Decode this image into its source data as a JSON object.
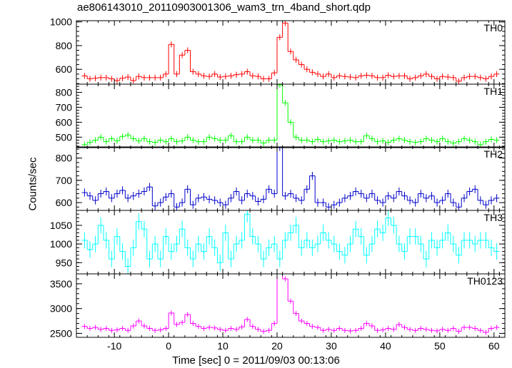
{
  "chart_data": {
    "type": "line",
    "style": "step-with-error-bars",
    "title": "ae806143010_20110903001306_wam3_trn_4band_short.qdp",
    "xlabel": "Time [sec] 0 = 2011/09/03 00:13:06",
    "ylabel": "Counts/sec",
    "xlim": [
      -17,
      62
    ],
    "x_ticks": [
      -10,
      0,
      10,
      20,
      30,
      40,
      50,
      60
    ],
    "grid": false,
    "x": [
      -15.5,
      -14.5,
      -13.5,
      -12.5,
      -11.5,
      -10.5,
      -9.5,
      -8.5,
      -7.5,
      -6.5,
      -5.5,
      -4.5,
      -3.5,
      -2.5,
      -1.5,
      -0.5,
      0.5,
      1.5,
      2.5,
      3.5,
      4.5,
      5.5,
      6.5,
      7.5,
      8.5,
      9.5,
      10.5,
      11.5,
      12.5,
      13.5,
      14.5,
      15.5,
      16.5,
      17.5,
      18.5,
      19.5,
      20.5,
      21.5,
      22.5,
      23.5,
      24.5,
      25.5,
      26.5,
      27.5,
      28.5,
      29.5,
      30.5,
      31.5,
      32.5,
      33.5,
      34.5,
      35.5,
      36.5,
      37.5,
      38.5,
      39.5,
      40.5,
      41.5,
      42.5,
      43.5,
      44.5,
      45.5,
      46.5,
      47.5,
      48.5,
      49.5,
      50.5,
      51.5,
      52.5,
      53.5,
      54.5,
      55.5,
      56.5,
      57.5,
      58.5,
      59.5,
      60.5
    ],
    "panels": [
      {
        "name": "TH0",
        "color": "#ff0000",
        "ylim": [
          475,
          1010
        ],
        "y_ticks": [
          600,
          800,
          1000
        ],
        "error": 25,
        "values": [
          545,
          520,
          525,
          530,
          530,
          520,
          505,
          525,
          535,
          505,
          540,
          530,
          530,
          530,
          530,
          560,
          810,
          560,
          720,
          760,
          580,
          560,
          545,
          540,
          560,
          535,
          540,
          545,
          555,
          560,
          580,
          545,
          540,
          520,
          520,
          570,
          870,
          990,
          750,
          680,
          640,
          600,
          575,
          560,
          540,
          560,
          530,
          545,
          540,
          535,
          530,
          545,
          550,
          545,
          530,
          530,
          550,
          540,
          545,
          545,
          520,
          530,
          545,
          560,
          540,
          520,
          540,
          535,
          530,
          500,
          530,
          540,
          540,
          530,
          520,
          540,
          560
        ]
      },
      {
        "name": "TH1",
        "color": "#00ff00",
        "ylim": [
          430,
          855
        ],
        "y_ticks": [
          500,
          600,
          700,
          800
        ],
        "error": 20,
        "values": [
          450,
          465,
          480,
          500,
          470,
          490,
          475,
          505,
          515,
          490,
          475,
          490,
          470,
          465,
          480,
          470,
          490,
          470,
          475,
          500,
          480,
          470,
          470,
          500,
          490,
          480,
          480,
          510,
          470,
          470,
          500,
          480,
          480,
          460,
          480,
          480,
          850,
          730,
          600,
          500,
          480,
          480,
          470,
          485,
          470,
          475,
          480,
          470,
          475,
          480,
          470,
          470,
          510,
          490,
          470,
          475,
          465,
          480,
          490,
          480,
          470,
          465,
          470,
          490,
          480,
          470,
          490,
          470,
          460,
          470,
          490,
          480,
          470,
          450,
          470,
          485,
          480
        ]
      },
      {
        "name": "TH2",
        "color": "#0000cc",
        "ylim": [
          565,
          850
        ],
        "y_ticks": [
          600,
          700,
          800
        ],
        "error": 18,
        "values": [
          645,
          630,
          610,
          640,
          650,
          620,
          640,
          655,
          620,
          630,
          640,
          650,
          670,
          585,
          600,
          625,
          640,
          580,
          600,
          660,
          590,
          620,
          625,
          615,
          610,
          600,
          590,
          620,
          650,
          610,
          640,
          630,
          605,
          615,
          660,
          640,
          850,
          630,
          640,
          620,
          610,
          660,
          720,
          600,
          600,
          580,
          590,
          600,
          620,
          630,
          650,
          640,
          620,
          640,
          610,
          600,
          630,
          620,
          650,
          630,
          610,
          600,
          640,
          620,
          630,
          600,
          610,
          640,
          600,
          580,
          620,
          650,
          660,
          610,
          590,
          610,
          620
        ]
      },
      {
        "name": "TH3",
        "color": "#00ffff",
        "ylim": [
          920,
          1090
        ],
        "y_ticks": [
          950,
          1000,
          1050
        ],
        "error": 22,
        "values": [
          1010,
          985,
          1000,
          1050,
          1010,
          960,
          1020,
          980,
          940,
          990,
          1060,
          1040,
          960,
          1000,
          960,
          1020,
          980,
          1000,
          1040,
          990,
          960,
          1000,
          980,
          1020,
          990,
          950,
          1030,
          960,
          1000,
          1010,
          1080,
          1020,
          1000,
          960,
          990,
          1000,
          960,
          1010,
          1030,
          1050,
          990,
          1010,
          990,
          1000,
          1030,
          1010,
          1000,
          980,
          970,
          1000,
          1040,
          1020,
          970,
          1000,
          1040,
          1030,
          1070,
          1050,
          1000,
          980,
          1020,
          1020,
          1000,
          960,
          1010,
          990,
          1010,
          1030,
          1000,
          970,
          1010,
          1010,
          1000,
          1010,
          1010,
          990,
          980
        ]
      },
      {
        "name": "TH0123",
        "color": "#ff00ff",
        "ylim": [
          2420,
          3700
        ],
        "y_ticks": [
          2500,
          3000,
          3500
        ],
        "error": 50,
        "values": [
          2640,
          2600,
          2620,
          2580,
          2600,
          2560,
          2570,
          2600,
          2560,
          2650,
          2750,
          2650,
          2600,
          2560,
          2570,
          2600,
          2910,
          2680,
          2720,
          2880,
          2700,
          2640,
          2600,
          2620,
          2610,
          2580,
          2560,
          2600,
          2580,
          2630,
          2780,
          2640,
          2580,
          2540,
          2560,
          2700,
          3750,
          3600,
          3150,
          2900,
          2750,
          2700,
          2640,
          2620,
          2560,
          2580,
          2560,
          2600,
          2560,
          2550,
          2560,
          2600,
          2700,
          2650,
          2560,
          2570,
          2600,
          2580,
          2680,
          2620,
          2580,
          2560,
          2600,
          2580,
          2560,
          2550,
          2580,
          2560,
          2600,
          2540,
          2620,
          2620,
          2600,
          2560,
          2520,
          2600,
          2620
        ]
      }
    ]
  }
}
